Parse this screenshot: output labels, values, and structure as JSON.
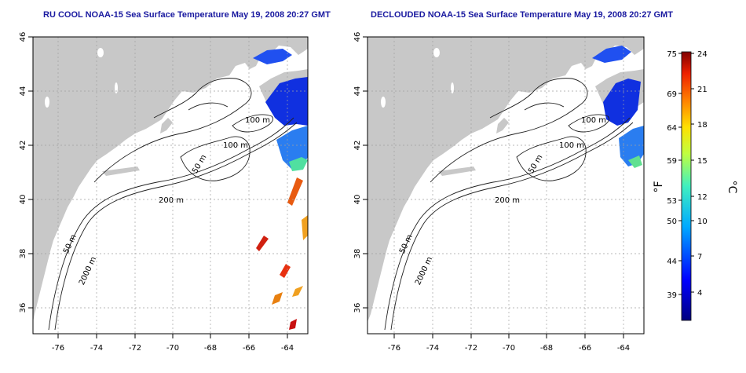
{
  "left_map": {
    "title": "RU COOL NOAA-15 Sea Surface Temperature May 19, 2008 20:27 GMT"
  },
  "right_map": {
    "title": "DECLOUDED NOAA-15 Sea Surface Temperature May 19, 2008 20:27 GMT"
  },
  "lat_ticks": [
    "46",
    "44",
    "42",
    "40",
    "38",
    "36"
  ],
  "lon_ticks": [
    "-76",
    "-74",
    "-72",
    "-70",
    "-68",
    "-66",
    "-64"
  ],
  "contour_labels": {
    "left": [
      "100 m",
      "100 m",
      "50 m",
      "200 m",
      "50 m",
      "2000 m"
    ],
    "right": [
      "100 m",
      "100 m",
      "50 m",
      "200 m",
      "50 m",
      "2000 m"
    ]
  },
  "colorbar": {
    "f_ticks": [
      "75",
      "69",
      "64",
      "59",
      "53",
      "50",
      "44",
      "39"
    ],
    "c_ticks": [
      "24",
      "21",
      "18",
      "15",
      "12",
      "10",
      "7",
      "4"
    ],
    "f_label": "°F",
    "c_label": "°C"
  },
  "colors": {
    "title": "#1a1aa0",
    "land": "#c8c8c8",
    "ocean": "#ffffff"
  }
}
